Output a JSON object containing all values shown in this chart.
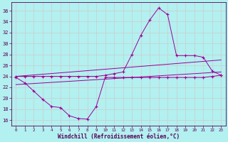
{
  "xlabel": "Windchill (Refroidissement éolien,°C)",
  "bg_color": "#b3f0f0",
  "line_color": "#990099",
  "grid_color": "#cccccc",
  "xlim": [
    -0.5,
    23.5
  ],
  "ylim": [
    15.0,
    37.5
  ],
  "yticks": [
    16,
    18,
    20,
    22,
    24,
    26,
    28,
    30,
    32,
    34,
    36
  ],
  "xticks": [
    0,
    1,
    2,
    3,
    4,
    5,
    6,
    7,
    8,
    9,
    10,
    11,
    12,
    13,
    14,
    15,
    16,
    17,
    18,
    19,
    20,
    21,
    22,
    23
  ],
  "curve_big_x": [
    0,
    1,
    2,
    3,
    4,
    5,
    6,
    7,
    8,
    9,
    10,
    11,
    12,
    13,
    14,
    15,
    16,
    17,
    18,
    19,
    20,
    21,
    22,
    23
  ],
  "curve_big_y": [
    24.0,
    24.0,
    24.0,
    24.0,
    24.0,
    24.0,
    24.0,
    24.0,
    24.0,
    24.0,
    24.2,
    24.5,
    24.8,
    28.0,
    31.5,
    34.3,
    36.5,
    35.3,
    27.8,
    27.8,
    27.8,
    27.5,
    25.0,
    24.2
  ],
  "curve_low_x": [
    0,
    1,
    2,
    3,
    4,
    5,
    6,
    7,
    8,
    9,
    10,
    11,
    12,
    13,
    14,
    15,
    16,
    17,
    18,
    19,
    20,
    21,
    22,
    23
  ],
  "curve_low_y": [
    23.8,
    22.8,
    21.3,
    19.8,
    18.5,
    18.3,
    16.8,
    16.3,
    16.2,
    18.5,
    23.8,
    23.8,
    23.8,
    23.8,
    23.8,
    23.8,
    23.8,
    23.8,
    23.8,
    23.8,
    23.8,
    23.8,
    24.0,
    24.2
  ],
  "curve_line1_x": [
    0,
    23
  ],
  "curve_line1_y": [
    24.0,
    27.0
  ],
  "curve_line2_x": [
    0,
    23
  ],
  "curve_line2_y": [
    22.5,
    24.8
  ]
}
